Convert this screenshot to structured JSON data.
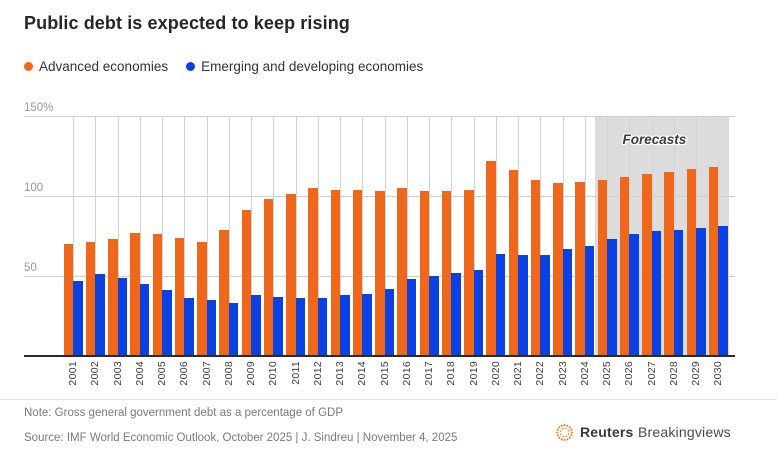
{
  "title": "Public debt is expected to keep rising",
  "legend": {
    "advanced_label": "Advanced economies",
    "emerging_label": "Emerging and developing economies"
  },
  "colors": {
    "advanced": "#ee671b",
    "emerging": "#0b41e3",
    "forecast_band": "#dcdcdc",
    "logo_orange": "#f47b20"
  },
  "chart_data": {
    "type": "bar",
    "title": "Public debt is expected to keep rising",
    "xlabel": "",
    "ylabel": "Gross general government debt as a percentage of GDP",
    "ylim": [
      0,
      150
    ],
    "ytick_labels": [
      "150%",
      "100",
      "50"
    ],
    "ytick_values": [
      150,
      100,
      50
    ],
    "grid": true,
    "legend_position": "top-left",
    "categories": [
      "2001",
      "2002",
      "2003",
      "2004",
      "2005",
      "2006",
      "2007",
      "2008",
      "2009",
      "2010",
      "2011",
      "2012",
      "2013",
      "2014",
      "2015",
      "2016",
      "2017",
      "2018",
      "2019",
      "2020",
      "2021",
      "2022",
      "2023",
      "2024",
      "2025",
      "2026",
      "2027",
      "2028",
      "2029",
      "2030"
    ],
    "series": [
      {
        "name": "Advanced economies",
        "values": [
          70,
          71,
          73,
          77,
          76,
          74,
          71,
          79,
          91,
          98,
          101,
          105,
          104,
          104,
          103,
          105,
          103,
          103,
          104,
          122,
          116,
          110,
          108,
          109,
          110,
          112,
          114,
          115,
          117,
          118
        ]
      },
      {
        "name": "Emerging and developing economies",
        "values": [
          47,
          51,
          49,
          45,
          41,
          36,
          35,
          33,
          38,
          37,
          36,
          36,
          38,
          39,
          42,
          48,
          50,
          52,
          54,
          64,
          63,
          63,
          67,
          69,
          73,
          76,
          78,
          79,
          80,
          81
        ]
      }
    ],
    "forecast": {
      "label": "Forecasts",
      "start_category": "2025",
      "end_category": "2030"
    }
  },
  "footer": {
    "note": "Note: Gross general government debt as a percentage of GDP",
    "source": "Source: IMF World Economic Outlook, October 2025 | J. Sindreu | November 4, 2025"
  },
  "logo": {
    "reuters": "Reuters",
    "breakingviews": "Breakingviews",
    "icon": "reuters-dotted-circle-icon"
  }
}
